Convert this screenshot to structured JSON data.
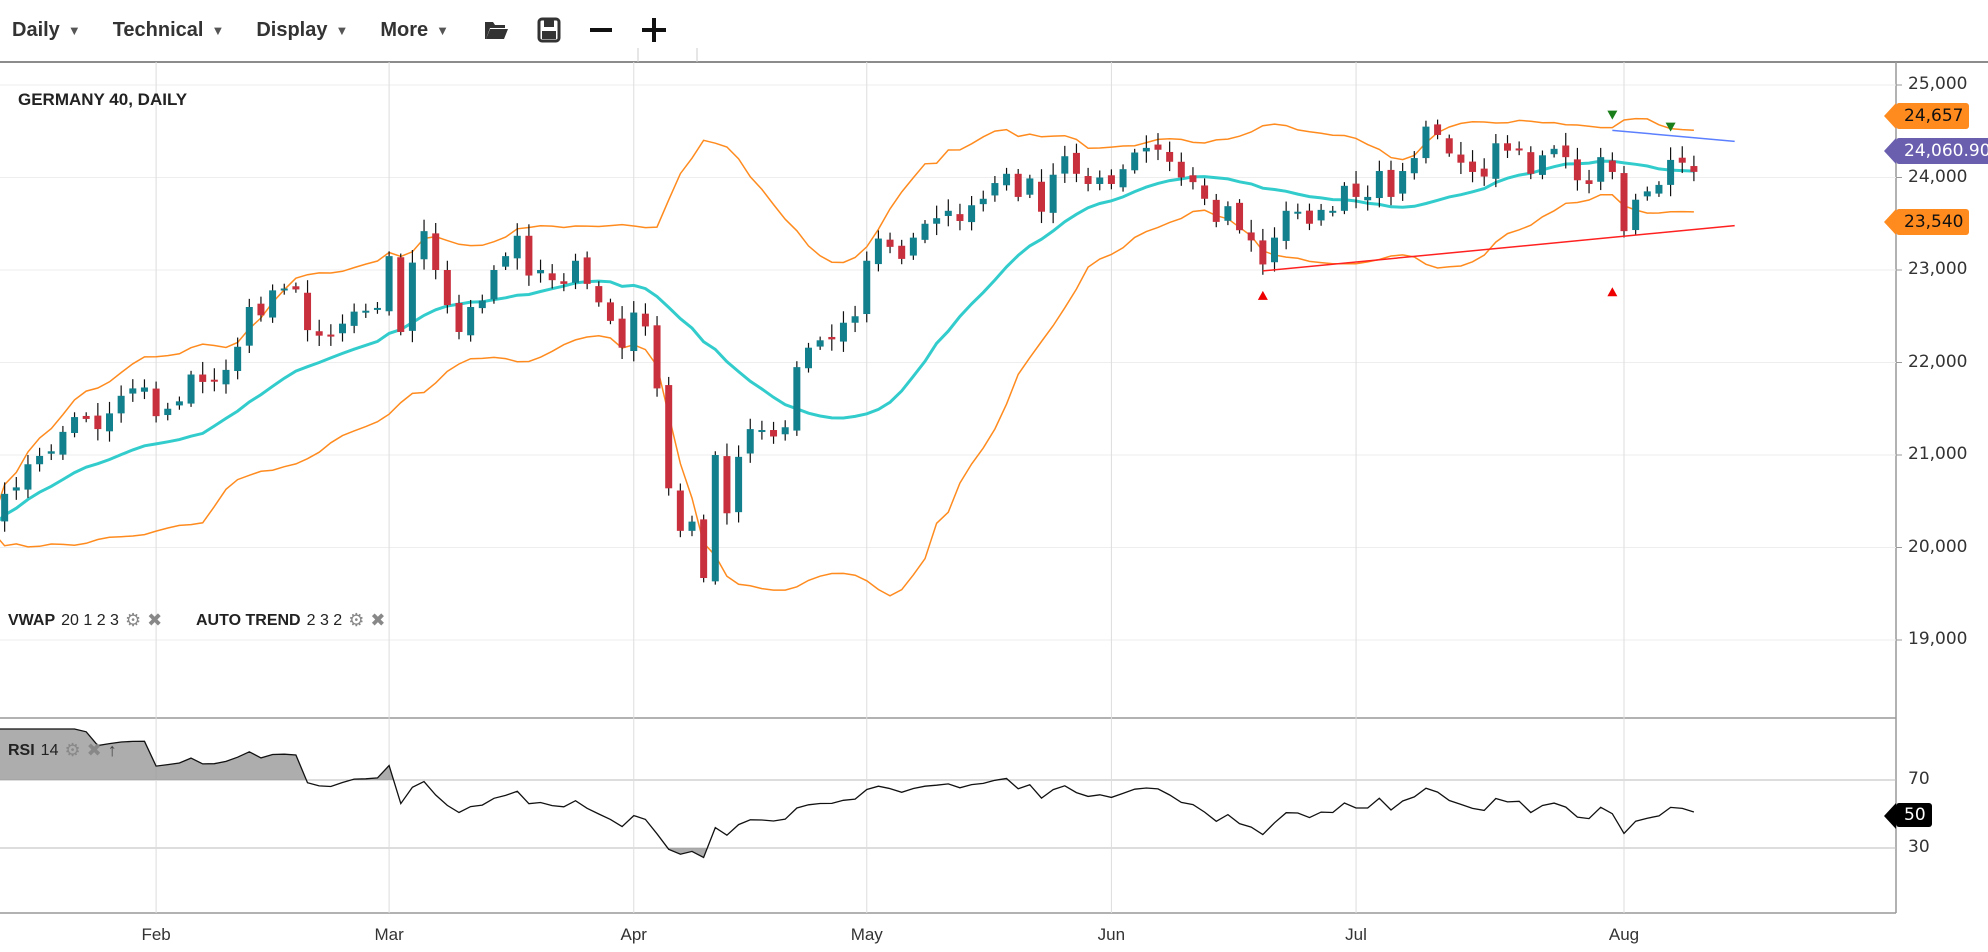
{
  "toolbar": {
    "items": [
      "Daily",
      "Technical",
      "Display",
      "More"
    ],
    "icons": [
      "folder-open-icon",
      "save-icon",
      "zoom-out-icon",
      "zoom-in-icon"
    ]
  },
  "chart_title": "GERMANY 40, DAILY",
  "indicators": {
    "vwap": {
      "name": "VWAP",
      "params": "20 1 2 3"
    },
    "auto_trend": {
      "name": "AUTO TREND",
      "params": "2 3 2"
    },
    "rsi": {
      "name": "RSI",
      "params": "14"
    }
  },
  "colors": {
    "bull": "#13808d",
    "bear": "#c9303e",
    "band": "#ff8b1f",
    "mid": "#33cccc",
    "trend_red": "#ff2020",
    "trend_blue": "#5b7fff",
    "price_tag": "#6a5fae"
  },
  "price_tags": {
    "upper": "24,657",
    "last": "24,060.90",
    "lower": "23,540",
    "rsi": "50"
  },
  "chart_data": {
    "type": "candlestick",
    "price_axis": {
      "ticks": [
        25000,
        24000,
        23000,
        22000,
        21000,
        20000,
        19000
      ],
      "labels": [
        "25,000",
        "24,000",
        "23,000",
        "22,000",
        "21,000",
        "20,000",
        "19,000"
      ]
    },
    "rsi_axis": {
      "ticks": [
        70,
        30
      ],
      "labels": [
        "70",
        "30"
      ]
    },
    "months": [
      {
        "label": "Feb",
        "date": "Feb 3"
      },
      {
        "label": "Mar",
        "date": "Mar 3"
      },
      {
        "label": "Apr",
        "date": "Apr 1"
      },
      {
        "label": "May",
        "date": "May 2"
      },
      {
        "label": "Jun",
        "date": "Jun 2"
      },
      {
        "label": "Jul",
        "date": "Jul 1"
      },
      {
        "label": "Aug",
        "date": "Aug 1"
      }
    ],
    "dates": [
      "Jan 13",
      "Jan 14",
      "Jan 15",
      "Jan 16",
      "Jan 17",
      "Jan 20",
      "Jan 21",
      "Jan 22",
      "Jan 23",
      "Jan 24",
      "Jan 27",
      "Jan 28",
      "Jan 29",
      "Jan 30",
      "Jan 31",
      "Feb 3",
      "Feb 4",
      "Feb 5",
      "Feb 6",
      "Feb 7",
      "Feb 10",
      "Feb 11",
      "Feb 12",
      "Feb 13",
      "Feb 14",
      "Feb 17",
      "Feb 18",
      "Feb 19",
      "Feb 20",
      "Feb 21",
      "Feb 24",
      "Feb 25",
      "Feb 26",
      "Feb 27",
      "Feb 28",
      "Mar 3",
      "Mar 4",
      "Mar 5",
      "Mar 6",
      "Mar 7",
      "Mar 10",
      "Mar 11",
      "Mar 12",
      "Mar 13",
      "Mar 14",
      "Mar 17",
      "Mar 18",
      "Mar 19",
      "Mar 20",
      "Mar 21",
      "Mar 24",
      "Mar 25",
      "Mar 26",
      "Mar 27",
      "Mar 28",
      "Mar 31",
      "Apr 1",
      "Apr 2",
      "Apr 3",
      "Apr 4",
      "Apr 7",
      "Apr 8",
      "Apr 9",
      "Apr 10",
      "Apr 11",
      "Apr 14",
      "Apr 15",
      "Apr 16",
      "Apr 17",
      "Apr 22",
      "Apr 23",
      "Apr 24",
      "Apr 25",
      "Apr 28",
      "Apr 29",
      "Apr 30",
      "May 2",
      "May 5",
      "May 6",
      "May 7",
      "May 8",
      "May 9",
      "May 12",
      "May 13",
      "May 14",
      "May 15",
      "May 16",
      "May 19",
      "May 20",
      "May 21",
      "May 22",
      "May 23",
      "May 26",
      "May 27",
      "May 28",
      "May 29",
      "May 30",
      "Jun 2",
      "Jun 3",
      "Jun 4",
      "Jun 5",
      "Jun 6",
      "Jun 9",
      "Jun 10",
      "Jun 11",
      "Jun 12",
      "Jun 13",
      "Jun 16",
      "Jun 17",
      "Jun 18",
      "Jun 19",
      "Jun 20",
      "Jun 23",
      "Jun 24",
      "Jun 25",
      "Jun 26",
      "Jun 27",
      "Jun 30",
      "Jul 1",
      "Jul 2",
      "Jul 3",
      "Jul 4",
      "Jul 7",
      "Jul 8",
      "Jul 9",
      "Jul 10",
      "Jul 11",
      "Jul 14",
      "Jul 15",
      "Jul 16",
      "Jul 17",
      "Jul 18",
      "Jul 21",
      "Jul 22",
      "Jul 23",
      "Jul 24",
      "Jul 25",
      "Jul 28",
      "Jul 29",
      "Jul 30",
      "Jul 31",
      "Aug 1",
      "Aug 4",
      "Aug 5",
      "Aug 6",
      "Aug 7",
      "Aug 8",
      "Aug 11"
    ],
    "close": [
      20200,
      20270,
      20580,
      20650,
      20900,
      20990,
      21040,
      21250,
      21410,
      21390,
      21280,
      21450,
      21640,
      21720,
      21730,
      21420,
      21500,
      21580,
      21870,
      21790,
      21800,
      21920,
      22170,
      22600,
      22510,
      22780,
      22800,
      22790,
      22350,
      22290,
      22280,
      22420,
      22550,
      22560,
      22590,
      23150,
      22330,
      23080,
      23420,
      23000,
      22620,
      22330,
      22600,
      22670,
      23000,
      23150,
      23370,
      22940,
      23000,
      22890,
      22850,
      23100,
      22850,
      22650,
      22450,
      22160,
      22540,
      22390,
      21720,
      20640,
      20180,
      20280,
      19670,
      21000,
      20370,
      20980,
      21280,
      21270,
      21200,
      21300,
      21950,
      22160,
      22240,
      22250,
      22430,
      22500,
      23100,
      23340,
      23250,
      23120,
      23350,
      23500,
      23560,
      23640,
      23530,
      23700,
      23770,
      23940,
      24040,
      23790,
      23990,
      23630,
      24030,
      24230,
      24040,
      23930,
      24000,
      23930,
      24090,
      24270,
      24320,
      24300,
      24170,
      24000,
      23950,
      23770,
      23520,
      23690,
      23430,
      23320,
      23060,
      23350,
      23640,
      23630,
      23500,
      23650,
      23640,
      23910,
      23790,
      23790,
      24070,
      23790,
      24070,
      24210,
      24550,
      24460,
      24260,
      24160,
      24060,
      24010,
      24370,
      24290,
      24310,
      24040,
      24240,
      24310,
      24220,
      23970,
      23930,
      24220,
      24060,
      23420,
      23760,
      23850,
      23920,
      24190,
      24160,
      24060.9
    ],
    "trendlines": [
      {
        "color": "red",
        "from": {
          "date": "Jun 19",
          "price": 22990
        },
        "to": {
          "date": "Aug 15",
          "price": 23480
        }
      },
      {
        "color": "blue",
        "from": {
          "date": "Jul 31",
          "price": 24510
        },
        "to": {
          "date": "Aug 15",
          "price": 24390
        }
      }
    ],
    "markers": [
      {
        "type": "up",
        "date": "Jun 19",
        "price": 22720
      },
      {
        "type": "up",
        "date": "Jul 31",
        "price": 22760
      },
      {
        "type": "down",
        "date": "Jul 31",
        "price": 24680
      },
      {
        "type": "down",
        "date": "Aug 7",
        "price": 24550
      }
    ]
  }
}
